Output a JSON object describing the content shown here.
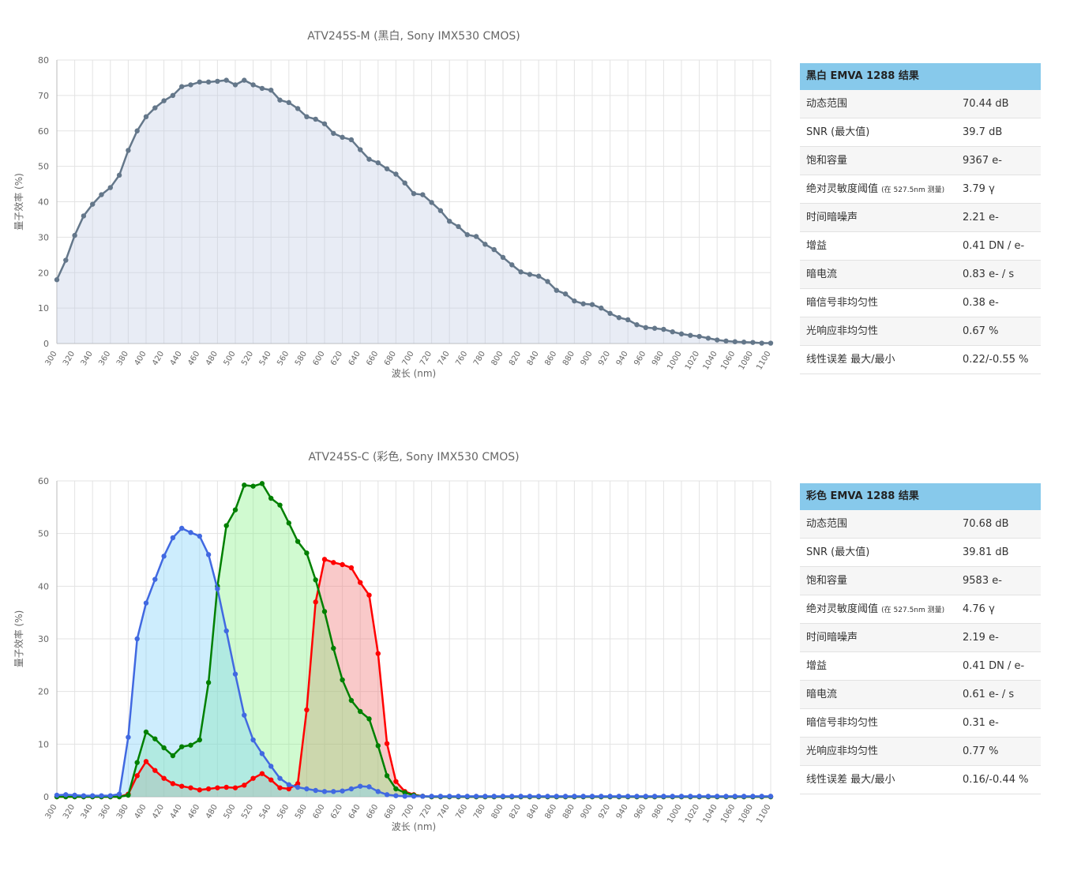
{
  "chart_data": [
    {
      "type": "line",
      "title": "ATV245S-M (黑白, Sony IMX530 CMOS)",
      "x_label": "波长 (nm)",
      "y_label": "量子效率 (%)",
      "x": [
        300,
        310,
        320,
        330,
        340,
        350,
        360,
        370,
        380,
        390,
        400,
        410,
        420,
        430,
        440,
        450,
        460,
        470,
        480,
        490,
        500,
        510,
        520,
        530,
        540,
        550,
        560,
        570,
        580,
        590,
        600,
        610,
        620,
        630,
        640,
        650,
        660,
        670,
        680,
        690,
        700,
        710,
        720,
        730,
        740,
        750,
        760,
        770,
        780,
        790,
        800,
        810,
        820,
        830,
        840,
        850,
        860,
        870,
        880,
        890,
        900,
        910,
        920,
        930,
        940,
        950,
        960,
        970,
        980,
        990,
        1000,
        1010,
        1020,
        1030,
        1040,
        1050,
        1060,
        1070,
        1080,
        1090,
        1100
      ],
      "series": [
        {
          "color": "#64778a",
          "fill": "rgba(190,200,225,0.35)",
          "values": [
            18,
            23.5,
            30.5,
            36,
            39.3,
            42,
            44,
            47.5,
            54.5,
            60,
            64,
            66.5,
            68.5,
            70,
            72.5,
            73,
            73.8,
            73.8,
            74,
            74.3,
            73,
            74.3,
            73,
            72,
            71.5,
            68.7,
            68,
            66.3,
            64,
            63.3,
            62,
            59.3,
            58.2,
            57.5,
            54.7,
            52,
            51,
            49.3,
            47.8,
            45.3,
            42.3,
            42,
            39.8,
            37.5,
            34.5,
            33,
            30.7,
            30.2,
            28,
            26.5,
            24.3,
            22.2,
            20.2,
            19.5,
            19,
            17.5,
            15,
            14,
            12,
            11.2,
            11,
            10,
            8.5,
            7.3,
            6.7,
            5.3,
            4.5,
            4.3,
            4,
            3.3,
            2.7,
            2.3,
            2,
            1.5,
            1,
            0.7,
            0.5,
            0.4,
            0.3,
            0.1,
            0.1
          ]
        }
      ],
      "xlim": [
        300,
        1100
      ],
      "ylim": [
        0,
        80
      ],
      "xticks": [
        300,
        320,
        340,
        360,
        380,
        400,
        420,
        440,
        460,
        480,
        500,
        520,
        540,
        560,
        580,
        600,
        620,
        640,
        660,
        680,
        700,
        720,
        740,
        760,
        780,
        800,
        820,
        840,
        860,
        880,
        900,
        920,
        940,
        960,
        980,
        1000,
        1020,
        1040,
        1060,
        1080,
        1100
      ],
      "yticks": [
        0,
        10,
        20,
        30,
        40,
        50,
        60,
        70,
        80
      ],
      "grid": true
    },
    {
      "type": "line",
      "title": "ATV245S-C (彩色, Sony IMX530 CMOS)",
      "x_label": "波长 (nm)",
      "y_label": "量子效率 (%)",
      "x": [
        300,
        310,
        320,
        330,
        340,
        350,
        360,
        370,
        380,
        390,
        400,
        410,
        420,
        430,
        440,
        450,
        460,
        470,
        480,
        490,
        500,
        510,
        520,
        530,
        540,
        550,
        560,
        570,
        580,
        590,
        600,
        610,
        620,
        630,
        640,
        650,
        660,
        670,
        680,
        690,
        700,
        710,
        720,
        730,
        740,
        750,
        760,
        770,
        780,
        790,
        800,
        810,
        820,
        830,
        840,
        850,
        860,
        870,
        880,
        890,
        900,
        910,
        920,
        930,
        940,
        950,
        960,
        970,
        980,
        990,
        1000,
        1010,
        1020,
        1030,
        1040,
        1050,
        1060,
        1070,
        1080,
        1090,
        1100
      ],
      "series": [
        {
          "color": "#ff0000",
          "fill": "rgba(240,120,120,0.4)",
          "values": [
            0,
            0,
            0,
            0,
            0,
            0,
            0,
            0,
            0.5,
            4,
            6.7,
            5,
            3.5,
            2.5,
            2,
            1.7,
            1.3,
            1.5,
            1.7,
            1.8,
            1.7,
            2.2,
            3.5,
            4.4,
            3.2,
            1.7,
            1.5,
            2.5,
            16.5,
            37,
            45.1,
            44.5,
            44.1,
            43.5,
            40.7,
            38.3,
            27.2,
            10.1,
            2.9,
            1,
            0.4,
            0.1,
            0,
            0,
            0,
            0,
            0,
            0,
            0,
            0,
            0,
            0,
            0,
            0,
            0,
            0,
            0,
            0,
            0,
            0,
            0,
            0,
            0,
            0,
            0,
            0,
            0,
            0,
            0,
            0,
            0,
            0,
            0,
            0,
            0,
            0,
            0,
            0,
            0,
            0,
            0
          ]
        },
        {
          "color": "#008000",
          "fill": "rgba(120,240,120,0.35)",
          "values": [
            0,
            0,
            0,
            0,
            0,
            0,
            0,
            0,
            0.3,
            6.5,
            12.3,
            11,
            9.3,
            7.8,
            9.5,
            9.8,
            10.8,
            21.7,
            40,
            51.5,
            54.5,
            59.2,
            59,
            59.5,
            56.7,
            55.4,
            52,
            48.5,
            46.3,
            41.2,
            35.2,
            28.2,
            22.2,
            18.3,
            16.2,
            14.8,
            9.7,
            4,
            1.5,
            0.8,
            0.3,
            0.1,
            0,
            0,
            0,
            0,
            0,
            0,
            0,
            0,
            0,
            0,
            0,
            0,
            0,
            0,
            0,
            0,
            0,
            0,
            0,
            0,
            0,
            0,
            0,
            0,
            0,
            0,
            0,
            0,
            0,
            0,
            0,
            0,
            0,
            0,
            0,
            0,
            0,
            0,
            0
          ]
        },
        {
          "color": "#4169e1",
          "fill": "rgba(130,210,250,0.4)",
          "values": [
            0.3,
            0.4,
            0.3,
            0.2,
            0.2,
            0.2,
            0.2,
            0.5,
            11.3,
            30,
            36.8,
            41.3,
            45.7,
            49.2,
            51,
            50.2,
            49.5,
            46,
            39.5,
            31.5,
            23.3,
            15.5,
            10.8,
            8.2,
            5.8,
            3.5,
            2.3,
            1.8,
            1.5,
            1.2,
            1,
            1,
            1.1,
            1.5,
            2,
            1.9,
            1,
            0.4,
            0.2,
            0.1,
            0.1,
            0.1,
            0.1,
            0.1,
            0.1,
            0.1,
            0.1,
            0.1,
            0.1,
            0.1,
            0.1,
            0.1,
            0.1,
            0.1,
            0.1,
            0.1,
            0.1,
            0.1,
            0.1,
            0.1,
            0.1,
            0.1,
            0.1,
            0.1,
            0.1,
            0.1,
            0.1,
            0.1,
            0.1,
            0.1,
            0.1,
            0.1,
            0.1,
            0.1,
            0.1,
            0.1,
            0.1,
            0.1,
            0.1,
            0.1,
            0.1
          ]
        }
      ],
      "xlim": [
        300,
        1100
      ],
      "ylim": [
        0,
        60
      ],
      "xticks": [
        300,
        320,
        340,
        360,
        380,
        400,
        420,
        440,
        460,
        480,
        500,
        520,
        540,
        560,
        580,
        600,
        620,
        640,
        660,
        680,
        700,
        720,
        740,
        760,
        780,
        800,
        820,
        840,
        860,
        880,
        900,
        920,
        940,
        960,
        980,
        1000,
        1020,
        1040,
        1060,
        1080,
        1100
      ],
      "yticks": [
        0,
        10,
        20,
        30,
        40,
        50,
        60
      ],
      "grid": true
    }
  ],
  "tables": [
    {
      "title": "黑白 EMVA 1288 结果",
      "rows": [
        {
          "label": "动态范围",
          "value": "70.44 dB"
        },
        {
          "label": "SNR (最大值)",
          "value": "39.7 dB"
        },
        {
          "label": "饱和容量",
          "value": "9367 e-"
        },
        {
          "label": "绝对灵敏度阈值",
          "note": "(在 527.5nm 测量)",
          "value": "3.79 γ"
        },
        {
          "label": "时间暗噪声",
          "value": "2.21 e-"
        },
        {
          "label": "增益",
          "value": "0.41 DN / e-"
        },
        {
          "label": "暗电流",
          "value": "0.83 e- / s"
        },
        {
          "label": "暗信号非均匀性",
          "value": "0.38 e-"
        },
        {
          "label": "光响应非均匀性",
          "value": "0.67 %"
        },
        {
          "label": "线性误差 最大/最小",
          "value": "0.22/-0.55 %"
        }
      ]
    },
    {
      "title": "彩色 EMVA 1288 结果",
      "rows": [
        {
          "label": "动态范围",
          "value": "70.68 dB"
        },
        {
          "label": "SNR (最大值)",
          "value": "39.81 dB"
        },
        {
          "label": "饱和容量",
          "value": "9583 e-"
        },
        {
          "label": "绝对灵敏度阈值",
          "note": "(在 527.5nm 测量)",
          "value": "4.76 γ"
        },
        {
          "label": "时间暗噪声",
          "value": "2.19 e-"
        },
        {
          "label": "增益",
          "value": "0.41 DN / e-"
        },
        {
          "label": "暗电流",
          "value": "0.61 e- / s"
        },
        {
          "label": "暗信号非均匀性",
          "value": "0.31 e-"
        },
        {
          "label": "光响应非均匀性",
          "value": "0.77 %"
        },
        {
          "label": "线性误差 最大/最小",
          "value": "0.16/-0.44 %"
        }
      ]
    }
  ]
}
